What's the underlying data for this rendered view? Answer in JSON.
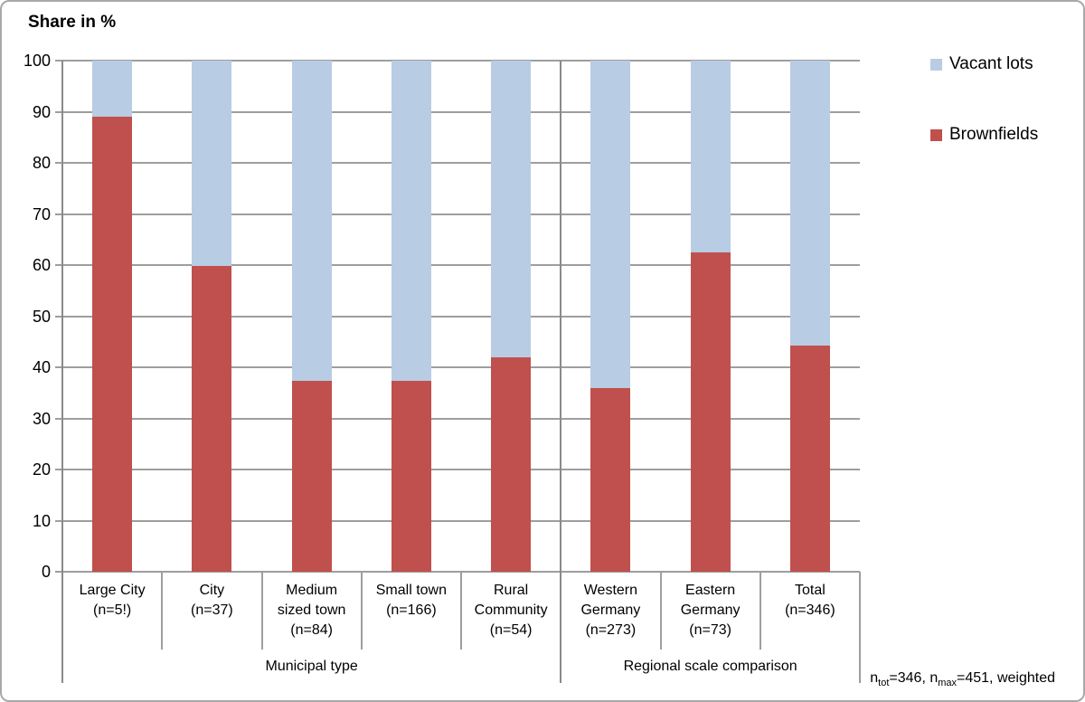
{
  "title": "Share in %",
  "legend": [
    {
      "label": "Vacant lots",
      "color": "#b8cce4"
    },
    {
      "label": "Brownfields",
      "color": "#c0504d"
    }
  ],
  "footnote": {
    "segments": [
      {
        "text": "n"
      },
      {
        "text": "tot",
        "sub": true
      },
      {
        "text": "=346, n"
      },
      {
        "text": "max",
        "sub": true
      },
      {
        "text": "=451, weighted"
      }
    ],
    "plain": "ntot=346, nmax=451, weighted"
  },
  "chart_data": {
    "type": "bar",
    "stacked": true,
    "title": "Share in %",
    "ylabel": "Share in %",
    "xlabel": "",
    "ylim": [
      0,
      100
    ],
    "ytick_step": 10,
    "grid": true,
    "legend_position": "right",
    "categories": [
      "Large City (n=5!)",
      "City (n=37)",
      "Medium sized town (n=84)",
      "Small town (n=166)",
      "Rural Community (n=54)",
      "Western Germany (n=273)",
      "Eastern Germany (n=73)",
      "Total (n=346)"
    ],
    "category_lines": [
      [
        "Large City",
        "(n=5!)"
      ],
      [
        "City",
        "(n=37)"
      ],
      [
        "Medium",
        "sized town",
        "(n=84)"
      ],
      [
        "Small town",
        "(n=166)"
      ],
      [
        "Rural",
        "Community",
        "(n=54)"
      ],
      [
        "Western",
        "Germany",
        "(n=273)"
      ],
      [
        "Eastern",
        "Germany",
        "(n=73)"
      ],
      [
        "Total",
        "(n=346)"
      ]
    ],
    "groups": [
      {
        "label": "Municipal type",
        "start": 0,
        "end": 5
      },
      {
        "label": "Regional scale comparison",
        "start": 5,
        "end": 8
      }
    ],
    "series": [
      {
        "name": "Brownfields",
        "color": "#c0504d",
        "values": [
          89.0,
          59.8,
          37.4,
          37.4,
          41.9,
          35.9,
          62.4,
          44.2
        ]
      },
      {
        "name": "Vacant lots",
        "color": "#b8cce4",
        "values": [
          11.0,
          40.2,
          62.6,
          62.6,
          58.1,
          64.1,
          37.6,
          55.8
        ]
      }
    ],
    "colors": {
      "gridline": "#9e9e9e",
      "axis": "#8a8a8a",
      "text": "#000000"
    }
  }
}
